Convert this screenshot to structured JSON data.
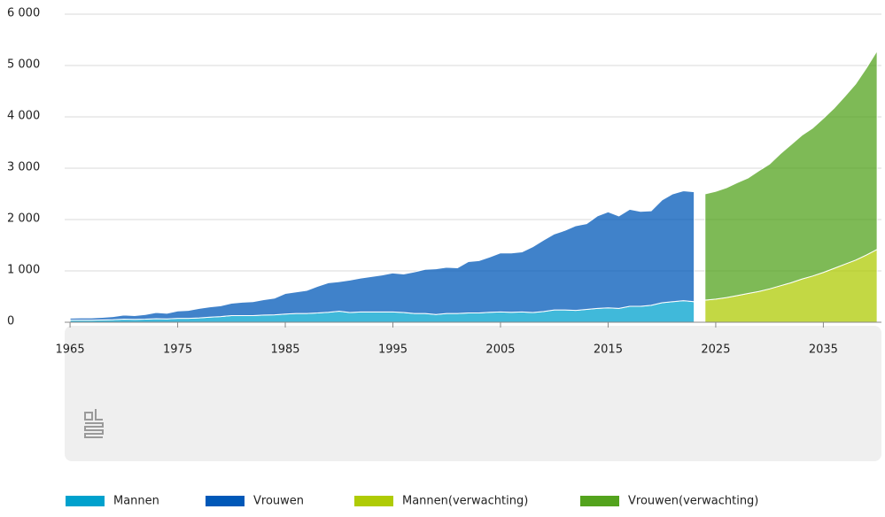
{
  "chart_data": {
    "type": "area",
    "stacked": true,
    "x": [
      1965,
      1966,
      1967,
      1968,
      1969,
      1970,
      1971,
      1972,
      1973,
      1974,
      1975,
      1976,
      1977,
      1978,
      1979,
      1980,
      1981,
      1982,
      1983,
      1984,
      1985,
      1986,
      1987,
      1988,
      1989,
      1990,
      1991,
      1992,
      1993,
      1994,
      1995,
      1996,
      1997,
      1998,
      1999,
      2000,
      2001,
      2002,
      2003,
      2004,
      2005,
      2006,
      2007,
      2008,
      2009,
      2010,
      2011,
      2012,
      2013,
      2014,
      2015,
      2016,
      2017,
      2018,
      2019,
      2020,
      2021,
      2022,
      2023,
      2024,
      2025,
      2026,
      2027,
      2028,
      2029,
      2030,
      2031,
      2032,
      2033,
      2034,
      2035,
      2036,
      2037,
      2038,
      2039,
      2040
    ],
    "series": [
      {
        "name": "Mannen",
        "color": "#00a1cd",
        "values": [
          40,
          40,
          40,
          45,
          50,
          60,
          55,
          60,
          70,
          65,
          75,
          75,
          85,
          100,
          110,
          130,
          130,
          130,
          140,
          145,
          160,
          170,
          170,
          180,
          195,
          215,
          190,
          200,
          200,
          200,
          200,
          190,
          170,
          170,
          150,
          170,
          170,
          180,
          180,
          195,
          200,
          195,
          200,
          190,
          210,
          240,
          240,
          230,
          250,
          270,
          280,
          270,
          310,
          310,
          330,
          380,
          400,
          420,
          400,
          null,
          null,
          null,
          null,
          null,
          null,
          null,
          null,
          null,
          null,
          null,
          null,
          null,
          null,
          null,
          null,
          null
        ]
      },
      {
        "name": "Vrouwen",
        "color": "#0058b8",
        "values": [
          40,
          45,
          45,
          50,
          60,
          80,
          75,
          90,
          120,
          110,
          145,
          155,
          185,
          200,
          210,
          240,
          260,
          270,
          300,
          325,
          400,
          420,
          450,
          520,
          575,
          575,
          630,
          660,
          690,
          720,
          760,
          750,
          810,
          860,
          890,
          900,
          890,
          1000,
          1020,
          1075,
          1150,
          1155,
          1170,
          1280,
          1390,
          1480,
          1550,
          1650,
          1670,
          1800,
          1870,
          1800,
          1890,
          1850,
          1840,
          2000,
          2100,
          2140,
          2140,
          null,
          null,
          null,
          null,
          null,
          null,
          null,
          null,
          null,
          null,
          null,
          null,
          null,
          null,
          null,
          null,
          null
        ]
      },
      {
        "name": "Mannen(verwachting)",
        "color": "#afcb05",
        "values": [
          null,
          null,
          null,
          null,
          null,
          null,
          null,
          null,
          null,
          null,
          null,
          null,
          null,
          null,
          null,
          null,
          null,
          null,
          null,
          null,
          null,
          null,
          null,
          null,
          null,
          null,
          null,
          null,
          null,
          null,
          null,
          null,
          null,
          null,
          null,
          null,
          null,
          null,
          null,
          null,
          null,
          null,
          null,
          null,
          null,
          null,
          null,
          null,
          null,
          null,
          null,
          null,
          null,
          null,
          null,
          null,
          null,
          null,
          null,
          430,
          450,
          480,
          520,
          560,
          600,
          650,
          710,
          770,
          840,
          900,
          970,
          1050,
          1130,
          1210,
          1310,
          1420
        ]
      },
      {
        "name": "Vrouwen(verwachting)",
        "color": "#53a31d",
        "values": [
          null,
          null,
          null,
          null,
          null,
          null,
          null,
          null,
          null,
          null,
          null,
          null,
          null,
          null,
          null,
          null,
          null,
          null,
          null,
          null,
          null,
          null,
          null,
          null,
          null,
          null,
          null,
          null,
          null,
          null,
          null,
          null,
          null,
          null,
          null,
          null,
          null,
          null,
          null,
          null,
          null,
          null,
          null,
          null,
          null,
          null,
          null,
          null,
          null,
          null,
          null,
          null,
          null,
          null,
          null,
          null,
          null,
          null,
          null,
          2070,
          2100,
          2140,
          2200,
          2250,
          2350,
          2430,
          2570,
          2690,
          2800,
          2880,
          3000,
          3120,
          3270,
          3430,
          3640,
          3870
        ]
      }
    ],
    "xlim": [
      1964.5,
      2040.4
    ],
    "xticks": [
      1965,
      1975,
      1985,
      1995,
      2005,
      2015,
      2025,
      2035
    ],
    "ylim": [
      0,
      6000
    ],
    "yticks": [
      0,
      {
        "value": 1000,
        "label": "1 000"
      },
      {
        "value": 2000,
        "label": "2 000"
      },
      {
        "value": 3000,
        "label": "3 000"
      },
      {
        "value": 4000,
        "label": "4 000"
      },
      {
        "value": 5000,
        "label": "5 000"
      },
      {
        "value": 6000,
        "label": "6 000"
      }
    ],
    "grid": true,
    "legend": "bottom"
  }
}
